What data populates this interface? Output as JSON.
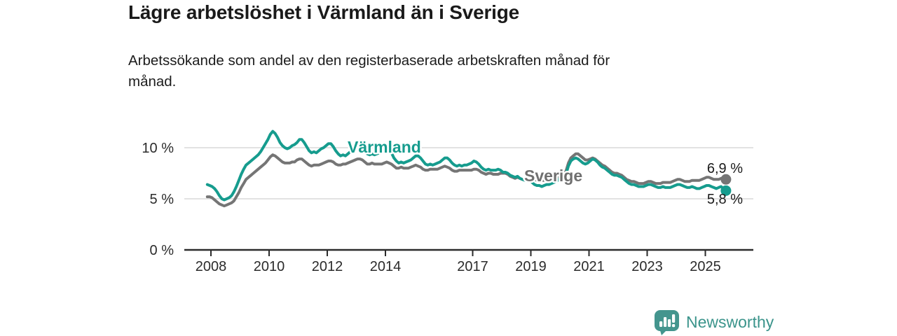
{
  "header": {
    "title": "Lägre arbetslöshet i Värmland än i Sverige",
    "subtitle_line1": "Arbetssökande som andel av den registerbaserade arbetskraften månad för",
    "subtitle_line2": "månad."
  },
  "chart_data": {
    "type": "line",
    "title": "Lägre arbetslöshet i Värmland än i Sverige",
    "subtitle": "Arbetssökande som andel av den registerbaserade arbetskraften månad för månad.",
    "frequency": "monthly",
    "x_start": "2007-11",
    "x_end": "2025-09",
    "ylim": [
      0,
      12.5
    ],
    "grid": "horizontal",
    "legend_position": "inline-labels",
    "x_tick_years": [
      2008,
      2010,
      2012,
      2014,
      2017,
      2019,
      2021,
      2023,
      2025
    ],
    "y_ticks": [
      {
        "value": 0,
        "label": "0 %"
      },
      {
        "value": 5,
        "label": "5 %"
      },
      {
        "value": 10,
        "label": "10 %"
      }
    ],
    "series": [
      {
        "name": "Sverige",
        "color": "#757575",
        "end_value": 6.9,
        "end_label": "6,9 %",
        "values": [
          5.2,
          5.2,
          5.1,
          4.9,
          4.7,
          4.5,
          4.4,
          4.3,
          4.4,
          4.5,
          4.6,
          4.8,
          5.2,
          5.6,
          6.1,
          6.5,
          6.9,
          7.1,
          7.3,
          7.5,
          7.7,
          7.9,
          8.1,
          8.3,
          8.5,
          8.8,
          9.1,
          9.3,
          9.2,
          9.0,
          8.8,
          8.6,
          8.5,
          8.5,
          8.5,
          8.6,
          8.6,
          8.8,
          8.9,
          8.9,
          8.7,
          8.5,
          8.3,
          8.2,
          8.3,
          8.3,
          8.3,
          8.4,
          8.5,
          8.6,
          8.7,
          8.7,
          8.6,
          8.4,
          8.3,
          8.3,
          8.4,
          8.4,
          8.5,
          8.6,
          8.7,
          8.8,
          8.9,
          8.9,
          8.8,
          8.6,
          8.4,
          8.4,
          8.5,
          8.4,
          8.4,
          8.4,
          8.4,
          8.5,
          8.6,
          8.5,
          8.4,
          8.2,
          8.0,
          8.0,
          8.1,
          8.0,
          8.0,
          8.0,
          8.1,
          8.2,
          8.3,
          8.2,
          8.1,
          7.9,
          7.8,
          7.8,
          7.9,
          7.9,
          7.9,
          7.9,
          8.0,
          8.1,
          8.2,
          8.1,
          8.0,
          7.8,
          7.7,
          7.7,
          7.8,
          7.8,
          7.8,
          7.8,
          7.8,
          7.8,
          7.9,
          7.9,
          7.8,
          7.6,
          7.5,
          7.4,
          7.5,
          7.5,
          7.4,
          7.4,
          7.4,
          7.5,
          7.5,
          7.5,
          7.4,
          7.2,
          7.1,
          7.0,
          7.1,
          7.0,
          6.9,
          6.9,
          6.9,
          7.0,
          7.0,
          6.9,
          6.8,
          6.8,
          6.8,
          6.8,
          6.9,
          6.9,
          7.0,
          7.0,
          7.1,
          7.2,
          7.4,
          7.4,
          7.7,
          8.5,
          9.0,
          9.2,
          9.4,
          9.4,
          9.2,
          9.0,
          8.8,
          8.8,
          8.9,
          9.0,
          8.9,
          8.7,
          8.5,
          8.3,
          8.2,
          8.0,
          7.8,
          7.6,
          7.5,
          7.5,
          7.4,
          7.3,
          7.1,
          6.9,
          6.8,
          6.7,
          6.7,
          6.6,
          6.5,
          6.5,
          6.5,
          6.6,
          6.7,
          6.7,
          6.6,
          6.5,
          6.5,
          6.5,
          6.6,
          6.6,
          6.6,
          6.6,
          6.7,
          6.8,
          6.9,
          6.9,
          6.8,
          6.7,
          6.7,
          6.7,
          6.8,
          6.8,
          6.8,
          6.8,
          6.9,
          7.0,
          7.1,
          7.1,
          7.0,
          6.9,
          6.9,
          6.9,
          7.0,
          7.0,
          6.9
        ]
      },
      {
        "name": "Värmland",
        "color": "#169c8e",
        "end_value": 5.8,
        "end_label": "5,8 %",
        "values": [
          6.4,
          6.3,
          6.2,
          6.0,
          5.7,
          5.3,
          5.0,
          4.9,
          5.0,
          5.1,
          5.3,
          5.7,
          6.2,
          6.8,
          7.4,
          7.9,
          8.3,
          8.5,
          8.7,
          8.9,
          9.1,
          9.3,
          9.6,
          10.0,
          10.4,
          10.8,
          11.3,
          11.6,
          11.4,
          11.0,
          10.5,
          10.2,
          10.0,
          9.9,
          10.0,
          10.2,
          10.3,
          10.5,
          10.8,
          10.8,
          10.5,
          10.1,
          9.7,
          9.5,
          9.6,
          9.5,
          9.7,
          9.9,
          10.0,
          10.2,
          10.4,
          10.4,
          10.1,
          9.7,
          9.4,
          9.2,
          9.3,
          9.2,
          9.4,
          9.6,
          9.8,
          10.0,
          10.2,
          10.2,
          10.0,
          9.7,
          9.4,
          9.3,
          9.4,
          9.3,
          9.4,
          9.5,
          9.6,
          9.8,
          9.9,
          9.8,
          9.5,
          9.0,
          8.7,
          8.5,
          8.6,
          8.5,
          8.6,
          8.7,
          8.8,
          9.0,
          9.2,
          9.2,
          9.0,
          8.7,
          8.4,
          8.3,
          8.4,
          8.3,
          8.4,
          8.5,
          8.6,
          8.8,
          9.0,
          9.0,
          8.8,
          8.5,
          8.3,
          8.2,
          8.3,
          8.2,
          8.3,
          8.3,
          8.4,
          8.5,
          8.7,
          8.6,
          8.4,
          8.1,
          7.9,
          7.8,
          7.9,
          7.8,
          7.8,
          7.8,
          7.9,
          7.8,
          7.6,
          7.6,
          7.5,
          7.3,
          7.2,
          7.1,
          7.2,
          7.0,
          6.9,
          6.8,
          6.8,
          6.8,
          6.6,
          6.4,
          6.3,
          6.3,
          6.2,
          6.3,
          6.4,
          6.4,
          6.5,
          6.6,
          6.7,
          6.9,
          7.1,
          7.1,
          7.4,
          8.2,
          8.7,
          8.9,
          9.0,
          8.9,
          8.7,
          8.5,
          8.4,
          8.5,
          8.7,
          8.9,
          8.8,
          8.6,
          8.3,
          8.1,
          8.0,
          7.8,
          7.6,
          7.4,
          7.3,
          7.3,
          7.2,
          7.1,
          6.9,
          6.7,
          6.5,
          6.4,
          6.4,
          6.3,
          6.2,
          6.2,
          6.2,
          6.3,
          6.4,
          6.4,
          6.3,
          6.2,
          6.1,
          6.1,
          6.2,
          6.1,
          6.1,
          6.1,
          6.2,
          6.3,
          6.4,
          6.4,
          6.3,
          6.2,
          6.1,
          6.1,
          6.2,
          6.1,
          6.0,
          6.0,
          6.1,
          6.2,
          6.3,
          6.3,
          6.2,
          6.1,
          6.0,
          6.1,
          6.2,
          6.0,
          5.8
        ]
      }
    ]
  },
  "footer": {
    "brand": "Newsworthy",
    "brand_color": "#3b948b",
    "icon_color": "#44958e"
  }
}
